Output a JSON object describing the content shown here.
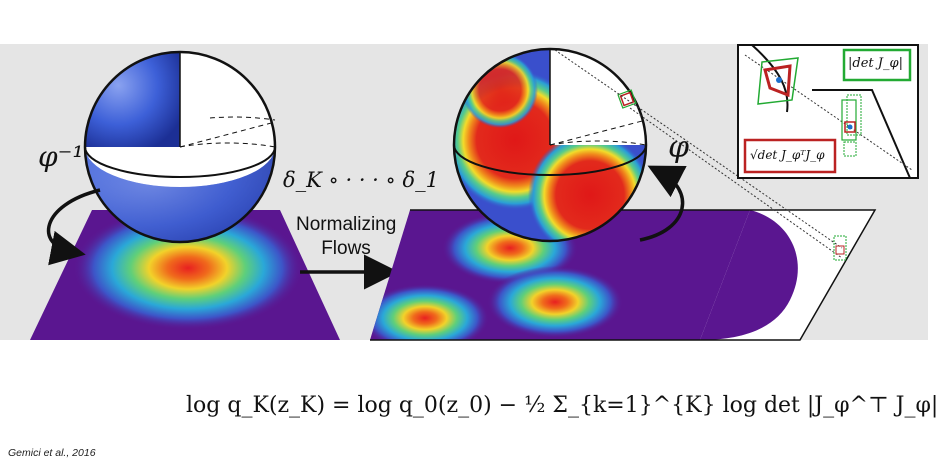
{
  "figure": {
    "inverse_map_label": "φ⁻¹",
    "composition_label": "δ_K ∘ · · · ∘ δ_1",
    "flows_label_line1": "Normalizing",
    "flows_label_line2": "Flows",
    "forward_map_label": "φ",
    "inset_det_label": "|det J_φ|",
    "inset_sqrt_det_label": "√det J_φᵀJ_φ"
  },
  "equation": "log q_K(z_K) = log q_0(z_0) − ½ Σ_{k=1}^{K} log det |J_φ^⊤ J_φ|",
  "citation": "Gemici et al., 2016",
  "colors": {
    "band": "#e5e5e5",
    "sphere_blue": "#3355cc",
    "density_purple": "#5a1690",
    "density_peak": "#e82020",
    "inset_green": "#22aa33",
    "inset_red": "#bb2222"
  }
}
